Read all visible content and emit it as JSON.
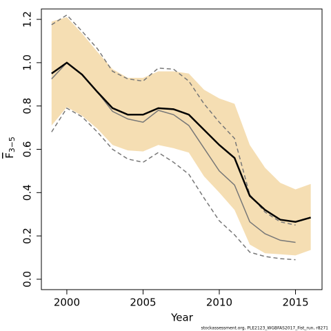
{
  "chart_data": {
    "type": "line",
    "x_label": "Year",
    "y_label": {
      "text": "F",
      "subscript": "3−5"
    },
    "footer": "stockassessment.org, PLE2123_WGBFAS2017_Fist_run, r8271",
    "x": [
      1999,
      2000,
      2001,
      2002,
      2003,
      2004,
      2005,
      2006,
      2007,
      2008,
      2009,
      2010,
      2011,
      2012,
      2013,
      2014,
      2015,
      2016
    ],
    "band": {
      "color": "#f5deb3",
      "upper": [
        1.19,
        1.21,
        1.135,
        1.05,
        0.97,
        0.93,
        0.93,
        0.96,
        0.96,
        0.95,
        0.875,
        0.835,
        0.81,
        0.62,
        0.515,
        0.445,
        0.415,
        0.44
      ],
      "lower": [
        0.71,
        0.795,
        0.755,
        0.695,
        0.62,
        0.595,
        0.59,
        0.62,
        0.605,
        0.585,
        0.475,
        0.4,
        0.32,
        0.16,
        0.12,
        0.115,
        0.11,
        0.135
      ]
    },
    "series": [
      {
        "color": "#777777",
        "dash": true,
        "width": 1.5,
        "values": [
          1.175,
          1.22,
          1.145,
          1.065,
          0.96,
          0.925,
          0.915,
          0.975,
          0.97,
          0.915,
          0.81,
          0.725,
          0.65,
          0.39,
          0.31,
          0.265,
          0.25,
          null
        ]
      },
      {
        "color": "#777777",
        "dash": true,
        "width": 1.5,
        "values": [
          0.68,
          0.79,
          0.75,
          0.68,
          0.6,
          0.555,
          0.54,
          0.585,
          0.54,
          0.485,
          0.375,
          0.27,
          0.205,
          0.125,
          0.105,
          0.095,
          0.09,
          null
        ]
      },
      {
        "color": "#777777",
        "dash": false,
        "width": 1.5,
        "values": [
          0.925,
          1.0,
          0.945,
          0.865,
          0.775,
          0.74,
          0.725,
          0.78,
          0.76,
          0.71,
          0.605,
          0.5,
          0.435,
          0.265,
          0.21,
          0.18,
          0.17,
          null
        ]
      },
      {
        "color": "#000000",
        "dash": false,
        "width": 2.5,
        "values": [
          0.95,
          1.0,
          0.945,
          0.865,
          0.79,
          0.76,
          0.76,
          0.79,
          0.785,
          0.76,
          0.69,
          0.62,
          0.56,
          0.385,
          0.32,
          0.275,
          0.265,
          0.285
        ]
      }
    ],
    "xlim": [
      1998.33,
      2016.74
    ],
    "ylim": [
      -0.048,
      1.248
    ],
    "xticks": [
      2000,
      2005,
      2010,
      2015
    ],
    "yticks": [
      {
        "value": 0,
        "label": "0.0"
      },
      0.2,
      0.4,
      0.6,
      0.8,
      {
        "value": 1,
        "label": "1.0"
      },
      1.2
    ],
    "grid": false
  }
}
